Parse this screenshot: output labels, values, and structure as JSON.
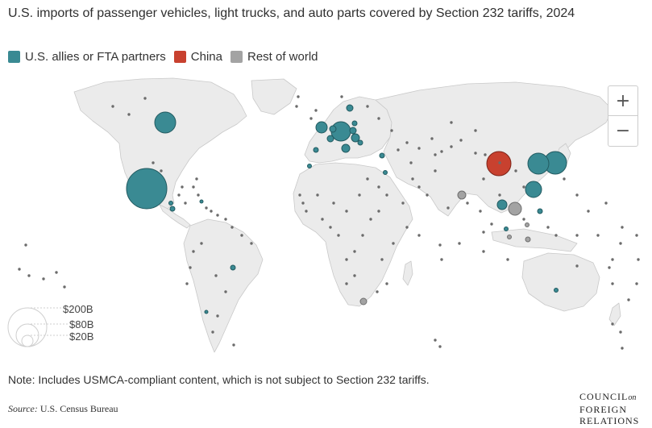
{
  "title": "U.S. imports of passenger vehicles, light trucks, and auto parts covered by Section 232 tariffs, 2024",
  "legend": [
    {
      "label": "U.S. allies or FTA partners",
      "color": "#3a8a93"
    },
    {
      "label": "China",
      "color": "#c8412f"
    },
    {
      "label": "Rest of world",
      "color": "#a3a3a3"
    }
  ],
  "colors": {
    "ally": "#3a8a93",
    "china": "#c8412f",
    "rest": "#a3a3a3",
    "land": "#ebebeb",
    "border": "#c9c9c9"
  },
  "zoom": {
    "in_label": "+",
    "out_label": "−"
  },
  "size_legend": [
    "$200B",
    "$80B",
    "$20B"
  ],
  "note": "Note: Includes USMCA-compliant content, which is not subject to Section 232 tariffs.",
  "source": {
    "label": "Source:",
    "text": "U.S. Census Bureau"
  },
  "logo": {
    "line1": "COUNCIL",
    "on": "on",
    "line2": "FOREIGN",
    "line3": "RELATIONS"
  }
}
